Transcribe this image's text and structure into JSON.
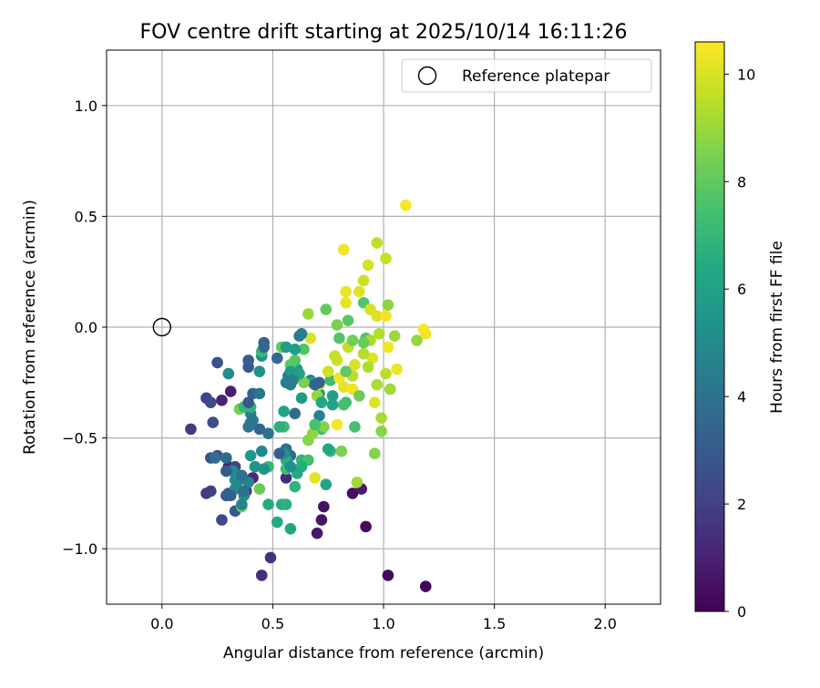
{
  "chart_data": {
    "type": "scatter",
    "title": "FOV centre drift starting at 2025/10/14 16:11:26",
    "xlabel": "Angular distance from reference (arcmin)",
    "ylabel": "Rotation from reference (arcmin)",
    "xlim": [
      -0.25,
      2.25
    ],
    "ylim": [
      -1.25,
      1.25
    ],
    "x_ticks": [
      0.0,
      0.5,
      1.0,
      1.5,
      2.0
    ],
    "x_tick_labels": [
      "0.0",
      "0.5",
      "1.0",
      "1.5",
      "2.0"
    ],
    "y_ticks": [
      -1.0,
      -0.5,
      0.0,
      0.5,
      1.0
    ],
    "y_tick_labels": [
      "−1.0",
      "−0.5",
      "0.0",
      "0.5",
      "1.0"
    ],
    "grid": true,
    "legend": {
      "placement": "top-right",
      "entries": [
        "Reference platepar"
      ]
    },
    "reference_point": {
      "x": 0.0,
      "y": 0.0,
      "label": "Reference platepar"
    },
    "colorbar": {
      "label": "Hours from first FF file",
      "colormap": "viridis",
      "range": [
        0,
        10.6
      ],
      "ticks": [
        0,
        2,
        4,
        6,
        8,
        10
      ],
      "tick_labels": [
        "0",
        "2",
        "4",
        "6",
        "8",
        "10"
      ]
    },
    "points": [
      {
        "x": 1.19,
        "y": -1.17,
        "h": 0.1
      },
      {
        "x": 1.02,
        "y": -1.12,
        "h": 0.2
      },
      {
        "x": 0.92,
        "y": -0.9,
        "h": 0.3
      },
      {
        "x": 0.86,
        "y": -0.75,
        "h": 0.4
      },
      {
        "x": 0.73,
        "y": -0.81,
        "h": 0.5
      },
      {
        "x": 0.72,
        "y": -0.87,
        "h": 0.6
      },
      {
        "x": 0.7,
        "y": -0.93,
        "h": 0.7
      },
      {
        "x": 0.9,
        "y": -0.73,
        "h": 0.8
      },
      {
        "x": 0.31,
        "y": -0.29,
        "h": 0.9
      },
      {
        "x": 0.3,
        "y": -0.63,
        "h": 1.0
      },
      {
        "x": 0.27,
        "y": -0.33,
        "h": 1.1
      },
      {
        "x": 0.41,
        "y": -0.68,
        "h": 1.2
      },
      {
        "x": 0.56,
        "y": -0.68,
        "h": 1.3
      },
      {
        "x": 0.45,
        "y": -1.12,
        "h": 1.4
      },
      {
        "x": 0.49,
        "y": -1.04,
        "h": 1.5
      },
      {
        "x": 0.36,
        "y": -0.67,
        "h": 1.6
      },
      {
        "x": 0.38,
        "y": -0.74,
        "h": 1.7
      },
      {
        "x": 0.13,
        "y": -0.46,
        "h": 1.8
      },
      {
        "x": 0.2,
        "y": -0.75,
        "h": 1.9
      },
      {
        "x": 0.22,
        "y": -0.74,
        "h": 2.0
      },
      {
        "x": 0.2,
        "y": -0.32,
        "h": 2.1
      },
      {
        "x": 0.33,
        "y": -0.63,
        "h": 2.2
      },
      {
        "x": 0.27,
        "y": -0.87,
        "h": 2.3
      },
      {
        "x": 0.22,
        "y": -0.34,
        "h": 2.4
      },
      {
        "x": 0.23,
        "y": -0.43,
        "h": 2.5
      },
      {
        "x": 0.25,
        "y": -0.16,
        "h": 2.6
      },
      {
        "x": 0.22,
        "y": -0.59,
        "h": 2.7
      },
      {
        "x": 0.25,
        "y": -0.58,
        "h": 2.8
      },
      {
        "x": 0.3,
        "y": -0.75,
        "h": 2.9
      },
      {
        "x": 0.33,
        "y": -0.83,
        "h": 3.0
      },
      {
        "x": 0.39,
        "y": -0.18,
        "h": 3.1
      },
      {
        "x": 0.39,
        "y": -0.15,
        "h": 3.2
      },
      {
        "x": 0.46,
        "y": -0.07,
        "h": 3.3
      },
      {
        "x": 0.41,
        "y": -0.3,
        "h": 3.4
      },
      {
        "x": 0.44,
        "y": -0.46,
        "h": 3.5
      },
      {
        "x": 0.52,
        "y": -0.14,
        "h": 3.6
      },
      {
        "x": 0.6,
        "y": -0.39,
        "h": 3.7
      },
      {
        "x": 0.56,
        "y": -0.55,
        "h": 3.8
      },
      {
        "x": 0.58,
        "y": -0.58,
        "h": 3.9
      },
      {
        "x": 0.57,
        "y": -0.22,
        "h": 4.0
      },
      {
        "x": 0.48,
        "y": -0.48,
        "h": 4.1
      },
      {
        "x": 0.4,
        "y": -0.43,
        "h": 4.2
      },
      {
        "x": 0.62,
        "y": -0.04,
        "h": 4.3
      },
      {
        "x": 0.58,
        "y": -0.26,
        "h": 4.4
      },
      {
        "x": 0.67,
        "y": -0.24,
        "h": 4.5
      },
      {
        "x": 0.71,
        "y": -0.4,
        "h": 4.6
      },
      {
        "x": 0.4,
        "y": -0.39,
        "h": 4.7
      },
      {
        "x": 0.34,
        "y": -0.7,
        "h": 4.8
      },
      {
        "x": 0.45,
        "y": -0.56,
        "h": 4.9
      },
      {
        "x": 0.33,
        "y": -0.73,
        "h": 5.0
      },
      {
        "x": 0.3,
        "y": -0.21,
        "h": 5.1
      },
      {
        "x": 0.37,
        "y": -0.76,
        "h": 5.2
      },
      {
        "x": 0.44,
        "y": -0.2,
        "h": 5.3
      },
      {
        "x": 0.45,
        "y": -0.13,
        "h": 5.4
      },
      {
        "x": 0.6,
        "y": -0.2,
        "h": 5.5
      },
      {
        "x": 0.61,
        "y": -0.19,
        "h": 5.6
      },
      {
        "x": 0.63,
        "y": -0.32,
        "h": 5.7
      },
      {
        "x": 0.68,
        "y": -0.25,
        "h": 5.8
      },
      {
        "x": 0.71,
        "y": -0.3,
        "h": 5.9
      },
      {
        "x": 0.77,
        "y": -0.31,
        "h": 6.0
      },
      {
        "x": 0.74,
        "y": -0.71,
        "h": 6.1
      },
      {
        "x": 0.55,
        "y": -0.38,
        "h": 6.2
      },
      {
        "x": 0.58,
        "y": -0.91,
        "h": 6.3
      },
      {
        "x": 0.52,
        "y": -0.88,
        "h": 6.4
      },
      {
        "x": 0.48,
        "y": -0.8,
        "h": 6.5
      },
      {
        "x": 0.54,
        "y": -0.8,
        "h": 6.6
      },
      {
        "x": 0.56,
        "y": -0.8,
        "h": 6.7
      },
      {
        "x": 0.6,
        "y": -0.72,
        "h": 6.8
      },
      {
        "x": 0.63,
        "y": -0.6,
        "h": 6.9
      },
      {
        "x": 0.76,
        "y": -0.56,
        "h": 7.0
      },
      {
        "x": 0.72,
        "y": -0.46,
        "h": 7.1
      },
      {
        "x": 0.76,
        "y": -0.24,
        "h": 7.2
      },
      {
        "x": 0.83,
        "y": -0.34,
        "h": 7.3
      },
      {
        "x": 0.82,
        "y": -0.35,
        "h": 7.4
      },
      {
        "x": 0.87,
        "y": -0.45,
        "h": 7.5
      },
      {
        "x": 0.92,
        "y": -0.05,
        "h": 7.6
      },
      {
        "x": 0.91,
        "y": 0.11,
        "h": 7.7
      },
      {
        "x": 0.8,
        "y": -0.05,
        "h": 7.8
      },
      {
        "x": 0.84,
        "y": 0.03,
        "h": 7.9
      },
      {
        "x": 0.74,
        "y": 0.08,
        "h": 8.0
      },
      {
        "x": 0.54,
        "y": -0.09,
        "h": 8.1
      },
      {
        "x": 0.44,
        "y": -0.73,
        "h": 8.2
      },
      {
        "x": 0.36,
        "y": -0.81,
        "h": 8.3
      },
      {
        "x": 0.35,
        "y": -0.37,
        "h": 8.4
      },
      {
        "x": 0.81,
        "y": -0.56,
        "h": 8.5
      },
      {
        "x": 0.96,
        "y": -0.57,
        "h": 8.6
      },
      {
        "x": 0.99,
        "y": -0.47,
        "h": 8.7
      },
      {
        "x": 1.02,
        "y": 0.1,
        "h": 8.8
      },
      {
        "x": 1.15,
        "y": -0.06,
        "h": 8.9
      },
      {
        "x": 1.05,
        "y": -0.04,
        "h": 9.0
      },
      {
        "x": 0.88,
        "y": -0.7,
        "h": 9.1
      },
      {
        "x": 0.94,
        "y": -0.06,
        "h": 9.2
      },
      {
        "x": 0.97,
        "y": -0.26,
        "h": 9.3
      },
      {
        "x": 0.98,
        "y": -0.03,
        "h": 9.4
      },
      {
        "x": 1.01,
        "y": -0.21,
        "h": 9.5
      },
      {
        "x": 0.97,
        "y": 0.38,
        "h": 9.6
      },
      {
        "x": 1.01,
        "y": 0.31,
        "h": 9.7
      },
      {
        "x": 0.91,
        "y": 0.21,
        "h": 9.8
      },
      {
        "x": 0.93,
        "y": 0.28,
        "h": 9.9
      },
      {
        "x": 1.1,
        "y": 0.55,
        "h": 10.5
      },
      {
        "x": 0.82,
        "y": 0.35,
        "h": 10.4
      },
      {
        "x": 0.83,
        "y": 0.16,
        "h": 10.3
      },
      {
        "x": 0.83,
        "y": 0.11,
        "h": 10.2
      },
      {
        "x": 0.89,
        "y": 0.16,
        "h": 10.1
      },
      {
        "x": 0.94,
        "y": 0.08,
        "h": 10.0
      },
      {
        "x": 0.97,
        "y": 0.05,
        "h": 10.0
      },
      {
        "x": 1.01,
        "y": 0.05,
        "h": 10.4
      },
      {
        "x": 1.18,
        "y": -0.01,
        "h": 10.5
      },
      {
        "x": 1.19,
        "y": -0.03,
        "h": 10.4
      },
      {
        "x": 1.06,
        "y": -0.19,
        "h": 10.3
      },
      {
        "x": 1.02,
        "y": -0.09,
        "h": 10.4
      },
      {
        "x": 0.95,
        "y": -0.14,
        "h": 10.1
      },
      {
        "x": 0.87,
        "y": -0.17,
        "h": 10.0
      },
      {
        "x": 0.79,
        "y": -0.15,
        "h": 9.8
      },
      {
        "x": 0.8,
        "y": -0.23,
        "h": 10.4
      },
      {
        "x": 0.82,
        "y": -0.27,
        "h": 10.2
      },
      {
        "x": 0.86,
        "y": -0.28,
        "h": 10.3
      },
      {
        "x": 0.96,
        "y": -0.34,
        "h": 10.1
      },
      {
        "x": 0.79,
        "y": -0.44,
        "h": 10.5
      },
      {
        "x": 0.69,
        "y": -0.68,
        "h": 10.2
      },
      {
        "x": 0.67,
        "y": -0.05,
        "h": 10.0
      },
      {
        "x": 0.71,
        "y": -0.26,
        "h": 9.9
      },
      {
        "x": 0.75,
        "y": -0.2,
        "h": 9.8
      },
      {
        "x": 0.78,
        "y": -0.13,
        "h": 9.7
      },
      {
        "x": 0.84,
        "y": -0.09,
        "h": 9.6
      },
      {
        "x": 0.86,
        "y": -0.22,
        "h": 9.5
      },
      {
        "x": 0.91,
        "y": -0.12,
        "h": 9.4
      },
      {
        "x": 0.93,
        "y": -0.18,
        "h": 9.3
      },
      {
        "x": 0.99,
        "y": -0.41,
        "h": 9.2
      },
      {
        "x": 1.03,
        "y": -0.28,
        "h": 9.1
      },
      {
        "x": 0.66,
        "y": 0.06,
        "h": 9.0
      },
      {
        "x": 0.7,
        "y": -0.31,
        "h": 8.9
      },
      {
        "x": 0.68,
        "y": -0.48,
        "h": 8.8
      },
      {
        "x": 0.66,
        "y": -0.51,
        "h": 8.7
      },
      {
        "x": 0.73,
        "y": -0.45,
        "h": 8.6
      },
      {
        "x": 0.64,
        "y": -0.25,
        "h": 8.5
      },
      {
        "x": 0.79,
        "y": 0.01,
        "h": 8.4
      },
      {
        "x": 0.86,
        "y": -0.06,
        "h": 8.3
      },
      {
        "x": 0.89,
        "y": -0.31,
        "h": 8.2
      },
      {
        "x": 0.91,
        "y": -0.07,
        "h": 8.1
      },
      {
        "x": 0.83,
        "y": -0.2,
        "h": 8.0
      },
      {
        "x": 0.58,
        "y": -0.17,
        "h": 7.9
      },
      {
        "x": 0.6,
        "y": -0.15,
        "h": 7.8
      },
      {
        "x": 0.64,
        "y": -0.1,
        "h": 7.7
      },
      {
        "x": 0.61,
        "y": -0.22,
        "h": 7.6
      },
      {
        "x": 0.69,
        "y": -0.44,
        "h": 7.5
      },
      {
        "x": 0.66,
        "y": -0.6,
        "h": 7.4
      },
      {
        "x": 0.56,
        "y": -0.64,
        "h": 7.3
      },
      {
        "x": 0.55,
        "y": -0.45,
        "h": 7.2
      },
      {
        "x": 0.45,
        "y": -0.11,
        "h": 7.1
      },
      {
        "x": 0.48,
        "y": -0.63,
        "h": 7.0
      },
      {
        "x": 0.37,
        "y": -0.36,
        "h": 6.9
      },
      {
        "x": 0.4,
        "y": -0.36,
        "h": 6.8
      },
      {
        "x": 0.53,
        "y": -0.45,
        "h": 6.7
      },
      {
        "x": 0.56,
        "y": -0.6,
        "h": 6.6
      },
      {
        "x": 0.63,
        "y": -0.63,
        "h": 6.5
      },
      {
        "x": 0.61,
        "y": -0.66,
        "h": 6.4
      },
      {
        "x": 0.75,
        "y": -0.55,
        "h": 6.3
      },
      {
        "x": 0.72,
        "y": -0.34,
        "h": 6.2
      },
      {
        "x": 0.77,
        "y": -0.35,
        "h": 6.1
      },
      {
        "x": 0.62,
        "y": -0.21,
        "h": 6.0
      },
      {
        "x": 0.56,
        "y": -0.09,
        "h": 5.9
      },
      {
        "x": 0.6,
        "y": -0.1,
        "h": 5.8
      },
      {
        "x": 0.58,
        "y": -0.2,
        "h": 5.7
      },
      {
        "x": 0.4,
        "y": -0.58,
        "h": 5.6
      },
      {
        "x": 0.42,
        "y": -0.63,
        "h": 5.5
      },
      {
        "x": 0.46,
        "y": -0.64,
        "h": 5.4
      },
      {
        "x": 0.55,
        "y": -0.57,
        "h": 5.3
      },
      {
        "x": 0.58,
        "y": -0.63,
        "h": 5.2
      },
      {
        "x": 0.33,
        "y": -0.69,
        "h": 5.1
      },
      {
        "x": 0.32,
        "y": -0.65,
        "h": 5.0
      },
      {
        "x": 0.33,
        "y": -0.73,
        "h": 4.9
      },
      {
        "x": 0.36,
        "y": -0.8,
        "h": 4.8
      },
      {
        "x": 0.39,
        "y": -0.7,
        "h": 4.7
      },
      {
        "x": 0.56,
        "y": -0.25,
        "h": 4.6
      },
      {
        "x": 0.59,
        "y": -0.24,
        "h": 4.5
      },
      {
        "x": 0.63,
        "y": -0.03,
        "h": 4.4
      },
      {
        "x": 0.41,
        "y": -0.42,
        "h": 4.3
      },
      {
        "x": 0.44,
        "y": -0.3,
        "h": 4.2
      },
      {
        "x": 0.39,
        "y": -0.45,
        "h": 4.1
      },
      {
        "x": 0.36,
        "y": -0.67,
        "h": 4.0
      },
      {
        "x": 0.37,
        "y": -0.74,
        "h": 3.9
      },
      {
        "x": 0.24,
        "y": -0.59,
        "h": 3.8
      },
      {
        "x": 0.29,
        "y": -0.59,
        "h": 3.7
      },
      {
        "x": 0.46,
        "y": -0.09,
        "h": 3.6
      },
      {
        "x": 0.69,
        "y": -0.26,
        "h": 3.5
      },
      {
        "x": 0.71,
        "y": -0.25,
        "h": 3.4
      },
      {
        "x": 0.53,
        "y": -0.57,
        "h": 3.3
      },
      {
        "x": 0.29,
        "y": -0.76,
        "h": 3.2
      },
      {
        "x": 0.31,
        "y": -0.76,
        "h": 3.1
      },
      {
        "x": 0.29,
        "y": -0.65,
        "h": 3.0
      },
      {
        "x": 0.39,
        "y": -0.34,
        "h": 2.9
      }
    ]
  }
}
